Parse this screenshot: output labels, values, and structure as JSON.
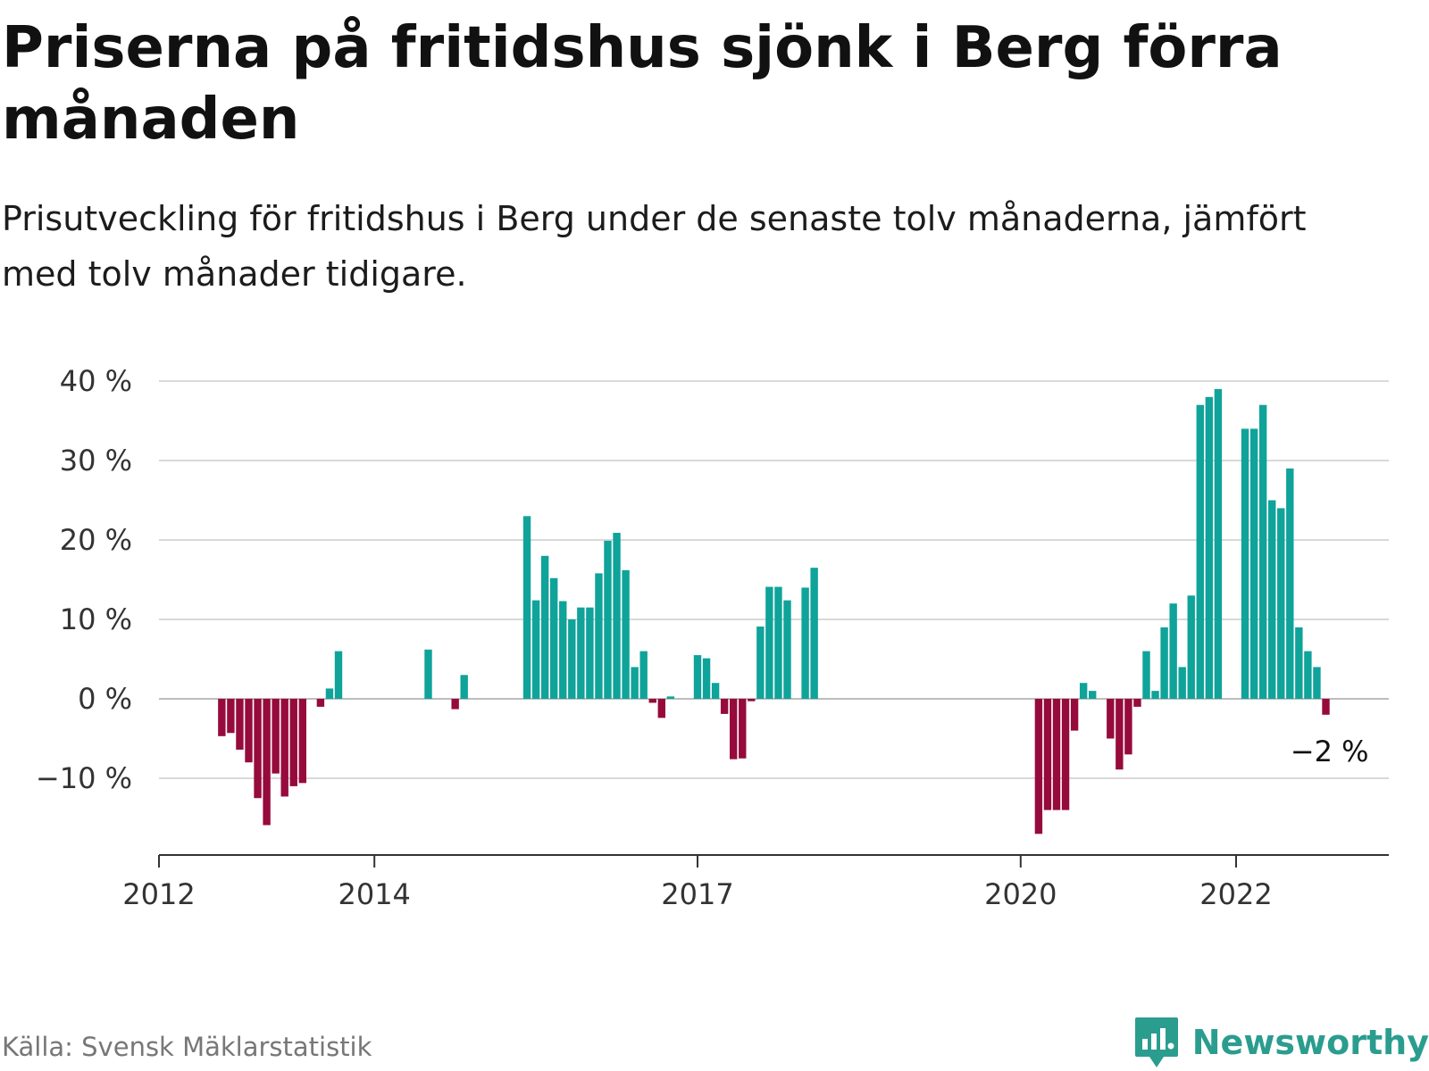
{
  "header": {
    "title": "Priserna på fritidshus sjönk i Berg förra månaden",
    "subtitle": "Prisutveckling för fritidshus i Berg under de senaste tolv månaderna, jämfört med tolv månader tidigare."
  },
  "footer": {
    "source": "Källa: Svensk Mäklarstatistik",
    "brand": "Newsworthy",
    "brand_icon": "newsworthy-logo-icon"
  },
  "colors": {
    "positive": "#0fa39a",
    "negative": "#960b3c",
    "grid": "#d9d9d9",
    "axis": "#333333",
    "brand": "#2a9d8f"
  },
  "chart_data": {
    "type": "bar",
    "title": "",
    "xlabel": "",
    "ylabel": "",
    "ylim": [
      -19,
      40
    ],
    "yticks": [
      -10,
      0,
      10,
      20,
      30,
      40
    ],
    "ytick_labels": [
      "−10 %",
      "0 %",
      "10 %",
      "20 %",
      "30 %",
      "40 %"
    ],
    "x_range": [
      "2012-01",
      "2023-06"
    ],
    "xticks": [
      "2012-01",
      "2014-01",
      "2017-01",
      "2020-01",
      "2022-01"
    ],
    "xtick_labels": [
      "2012",
      "2014",
      "2017",
      "2020",
      "2022"
    ],
    "grid": true,
    "end_label": "−2 %",
    "series": [
      {
        "values": [
          [
            "2012-08",
            -4.7
          ],
          [
            "2012-09",
            -4.3
          ],
          [
            "2012-10",
            -6.4
          ],
          [
            "2012-11",
            -8.0
          ],
          [
            "2012-12",
            -12.5
          ],
          [
            "2013-01",
            -15.9
          ],
          [
            "2013-02",
            -9.4
          ],
          [
            "2013-03",
            -12.3
          ],
          [
            "2013-04",
            -11.0
          ],
          [
            "2013-05",
            -10.6
          ],
          [
            "2013-07",
            -1.0
          ],
          [
            "2013-08",
            1.3
          ],
          [
            "2013-09",
            6.0
          ],
          [
            "2014-07",
            6.2
          ],
          [
            "2014-10",
            -1.3
          ],
          [
            "2014-11",
            3.0
          ],
          [
            "2015-06",
            23.0
          ],
          [
            "2015-07",
            12.4
          ],
          [
            "2015-08",
            18.0
          ],
          [
            "2015-09",
            15.2
          ],
          [
            "2015-10",
            12.3
          ],
          [
            "2015-11",
            10.0
          ],
          [
            "2015-12",
            11.5
          ],
          [
            "2016-01",
            11.5
          ],
          [
            "2016-02",
            15.8
          ],
          [
            "2016-03",
            19.9
          ],
          [
            "2016-04",
            20.9
          ],
          [
            "2016-05",
            16.2
          ],
          [
            "2016-06",
            4.0
          ],
          [
            "2016-07",
            6.0
          ],
          [
            "2016-08",
            -0.5
          ],
          [
            "2016-09",
            -2.4
          ],
          [
            "2016-10",
            0.3
          ],
          [
            "2017-01",
            5.5
          ],
          [
            "2017-02",
            5.1
          ],
          [
            "2017-03",
            2.0
          ],
          [
            "2017-04",
            -1.9
          ],
          [
            "2017-05",
            -7.6
          ],
          [
            "2017-06",
            -7.5
          ],
          [
            "2017-07",
            -0.3
          ],
          [
            "2017-08",
            9.1
          ],
          [
            "2017-09",
            14.1
          ],
          [
            "2017-10",
            14.1
          ],
          [
            "2017-11",
            12.4
          ],
          [
            "2018-01",
            14.0
          ],
          [
            "2018-02",
            16.5
          ],
          [
            "2020-03",
            -17.0
          ],
          [
            "2020-04",
            -14.0
          ],
          [
            "2020-05",
            -14.0
          ],
          [
            "2020-06",
            -14.0
          ],
          [
            "2020-07",
            -4.0
          ],
          [
            "2020-08",
            2.0
          ],
          [
            "2020-09",
            1.0
          ],
          [
            "2020-11",
            -5.0
          ],
          [
            "2020-12",
            -8.9
          ],
          [
            "2021-01",
            -7.0
          ],
          [
            "2021-02",
            -1.0
          ],
          [
            "2021-03",
            6.0
          ],
          [
            "2021-04",
            1.0
          ],
          [
            "2021-05",
            9.0
          ],
          [
            "2021-06",
            12.0
          ],
          [
            "2021-07",
            4.0
          ],
          [
            "2021-08",
            13.0
          ],
          [
            "2021-09",
            37.0
          ],
          [
            "2021-10",
            38.0
          ],
          [
            "2021-11",
            39.0
          ],
          [
            "2022-02",
            34.0
          ],
          [
            "2022-03",
            34.0
          ],
          [
            "2022-04",
            37.0
          ],
          [
            "2022-05",
            25.0
          ],
          [
            "2022-06",
            24.0
          ],
          [
            "2022-07",
            29.0
          ],
          [
            "2022-08",
            9.0
          ],
          [
            "2022-09",
            6.0
          ],
          [
            "2022-10",
            4.0
          ],
          [
            "2022-11",
            -2.0
          ]
        ]
      }
    ]
  }
}
